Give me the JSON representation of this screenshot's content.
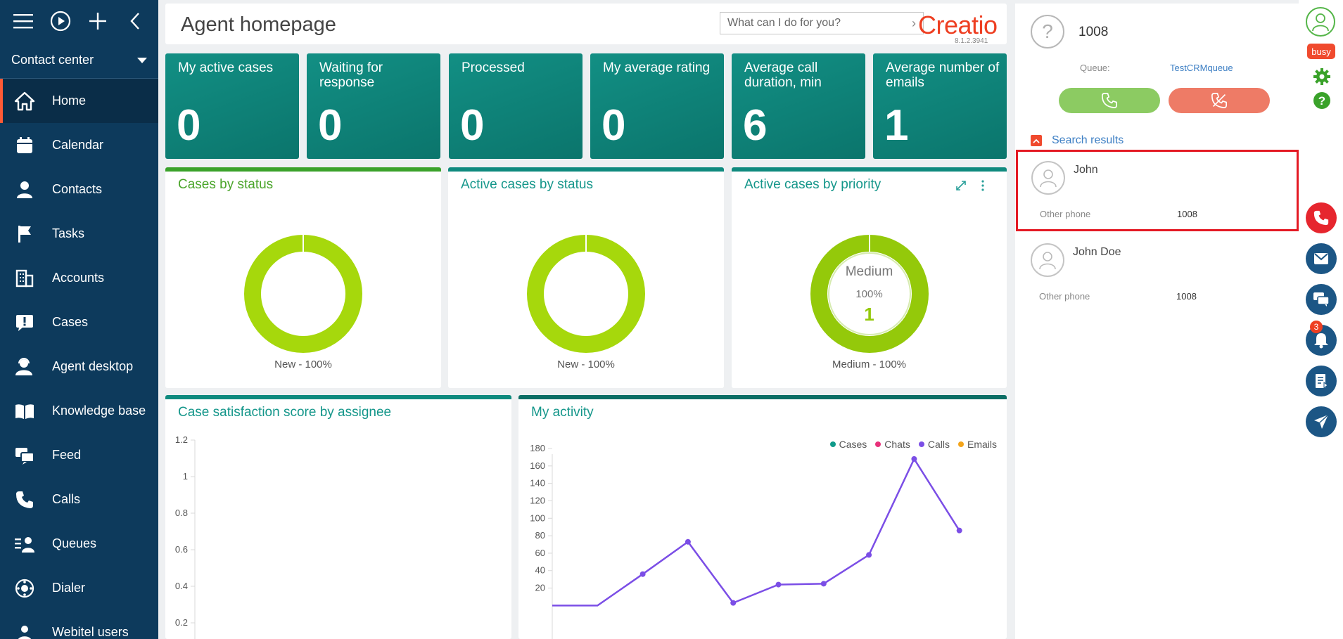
{
  "sidebar": {
    "workplace": "Contact center",
    "items": [
      {
        "label": "Home",
        "icon": "home-icon",
        "active": true
      },
      {
        "label": "Calendar",
        "icon": "calendar-icon"
      },
      {
        "label": "Contacts",
        "icon": "person-icon"
      },
      {
        "label": "Tasks",
        "icon": "flag-icon"
      },
      {
        "label": "Accounts",
        "icon": "building-icon"
      },
      {
        "label": "Cases",
        "icon": "case-icon"
      },
      {
        "label": "Agent desktop",
        "icon": "agent-icon"
      },
      {
        "label": "Knowledge base",
        "icon": "book-icon"
      },
      {
        "label": "Feed",
        "icon": "feed-icon"
      },
      {
        "label": "Calls",
        "icon": "phone-icon"
      },
      {
        "label": "Queues",
        "icon": "queue-icon"
      },
      {
        "label": "Dialer",
        "icon": "dialer-icon"
      },
      {
        "label": "Webitel users",
        "icon": "users-icon"
      }
    ]
  },
  "header": {
    "title": "Agent homepage",
    "command_placeholder": "What can I do for you?",
    "logo": "Creatio",
    "version": "8.1.2.3941"
  },
  "kpis": [
    {
      "label": "My active cases",
      "value": "0"
    },
    {
      "label": "Waiting for response",
      "value": "0"
    },
    {
      "label": "Processed",
      "value": "0"
    },
    {
      "label": "My average rating",
      "value": "0"
    },
    {
      "label": "Average call duration, min",
      "value": "6"
    },
    {
      "label": "Average number of emails",
      "value": "1"
    }
  ],
  "donuts": [
    {
      "title": "Cases by status",
      "legend": "New - 100%"
    },
    {
      "title": "Active cases by status",
      "legend": "New - 100%"
    },
    {
      "title": "Active cases by priority",
      "legend": "Medium - 100%",
      "center_label": "Medium",
      "center_pct": "100%",
      "center_val": "1"
    }
  ],
  "satisfaction": {
    "title": "Case satisfaction score by assignee",
    "yticks": [
      "1.2",
      "1",
      "0.8",
      "0.6",
      "0.4",
      "0.2"
    ]
  },
  "activity": {
    "title": "My activity",
    "legend": [
      {
        "name": "Cases",
        "color": "#0f9a8a"
      },
      {
        "name": "Chats",
        "color": "#e8317a"
      },
      {
        "name": "Calls",
        "color": "#7b4ee6"
      },
      {
        "name": "Emails",
        "color": "#f3a41a"
      }
    ],
    "yticks": [
      "180",
      "160",
      "140",
      "120",
      "100",
      "80",
      "60",
      "40",
      "20"
    ]
  },
  "chart_data": {
    "type": "line",
    "title": "My activity",
    "ylim": [
      0,
      180
    ],
    "series": [
      {
        "name": "Calls",
        "values": [
          0,
          0,
          36,
          73,
          3,
          24,
          25,
          58,
          168,
          86
        ]
      }
    ]
  },
  "call_panel": {
    "number": "1008",
    "queue_label": "Queue:",
    "queue_value": "TestCRMqueue",
    "search_results_label": "Search results",
    "results": [
      {
        "name": "John",
        "field_label": "Other phone",
        "field_value": "1008",
        "selected": true
      },
      {
        "name": "John Doe",
        "field_label": "Other phone",
        "field_value": "1008",
        "selected": false
      }
    ]
  },
  "right_toolbar": {
    "status": "busy",
    "notifications_count": "3"
  }
}
